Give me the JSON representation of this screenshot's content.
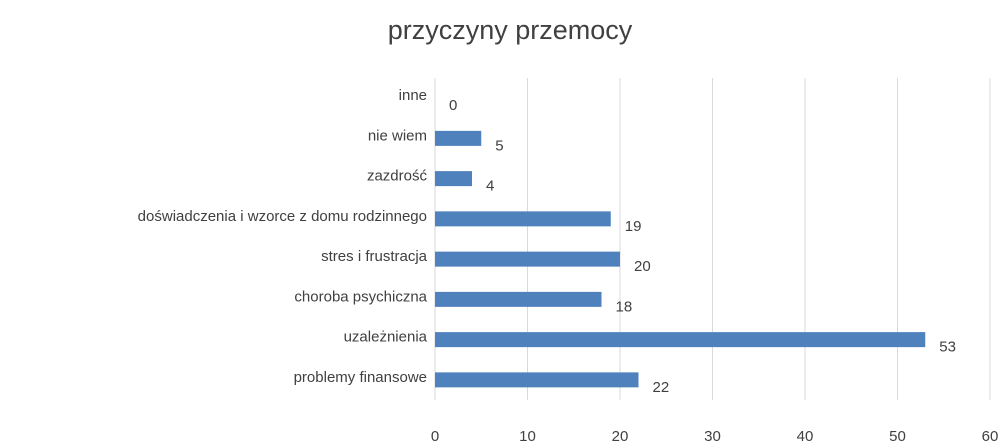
{
  "chart_data": {
    "type": "bar",
    "orientation": "horizontal",
    "title": "przyczyny przemocy",
    "categories": [
      "problemy finansowe",
      "uzależnienia",
      "choroba psychiczna",
      "stres i frustracja",
      "doświadczenia i wzorce z domu rodzinnego",
      "zazdrość",
      "nie wiem",
      "inne"
    ],
    "values": [
      22,
      53,
      18,
      20,
      19,
      4,
      5,
      0
    ],
    "color": "#4f81bd",
    "xlim": [
      0,
      60
    ],
    "xticks": [
      0,
      10,
      20,
      30,
      40,
      50,
      60
    ],
    "grid": true
  }
}
